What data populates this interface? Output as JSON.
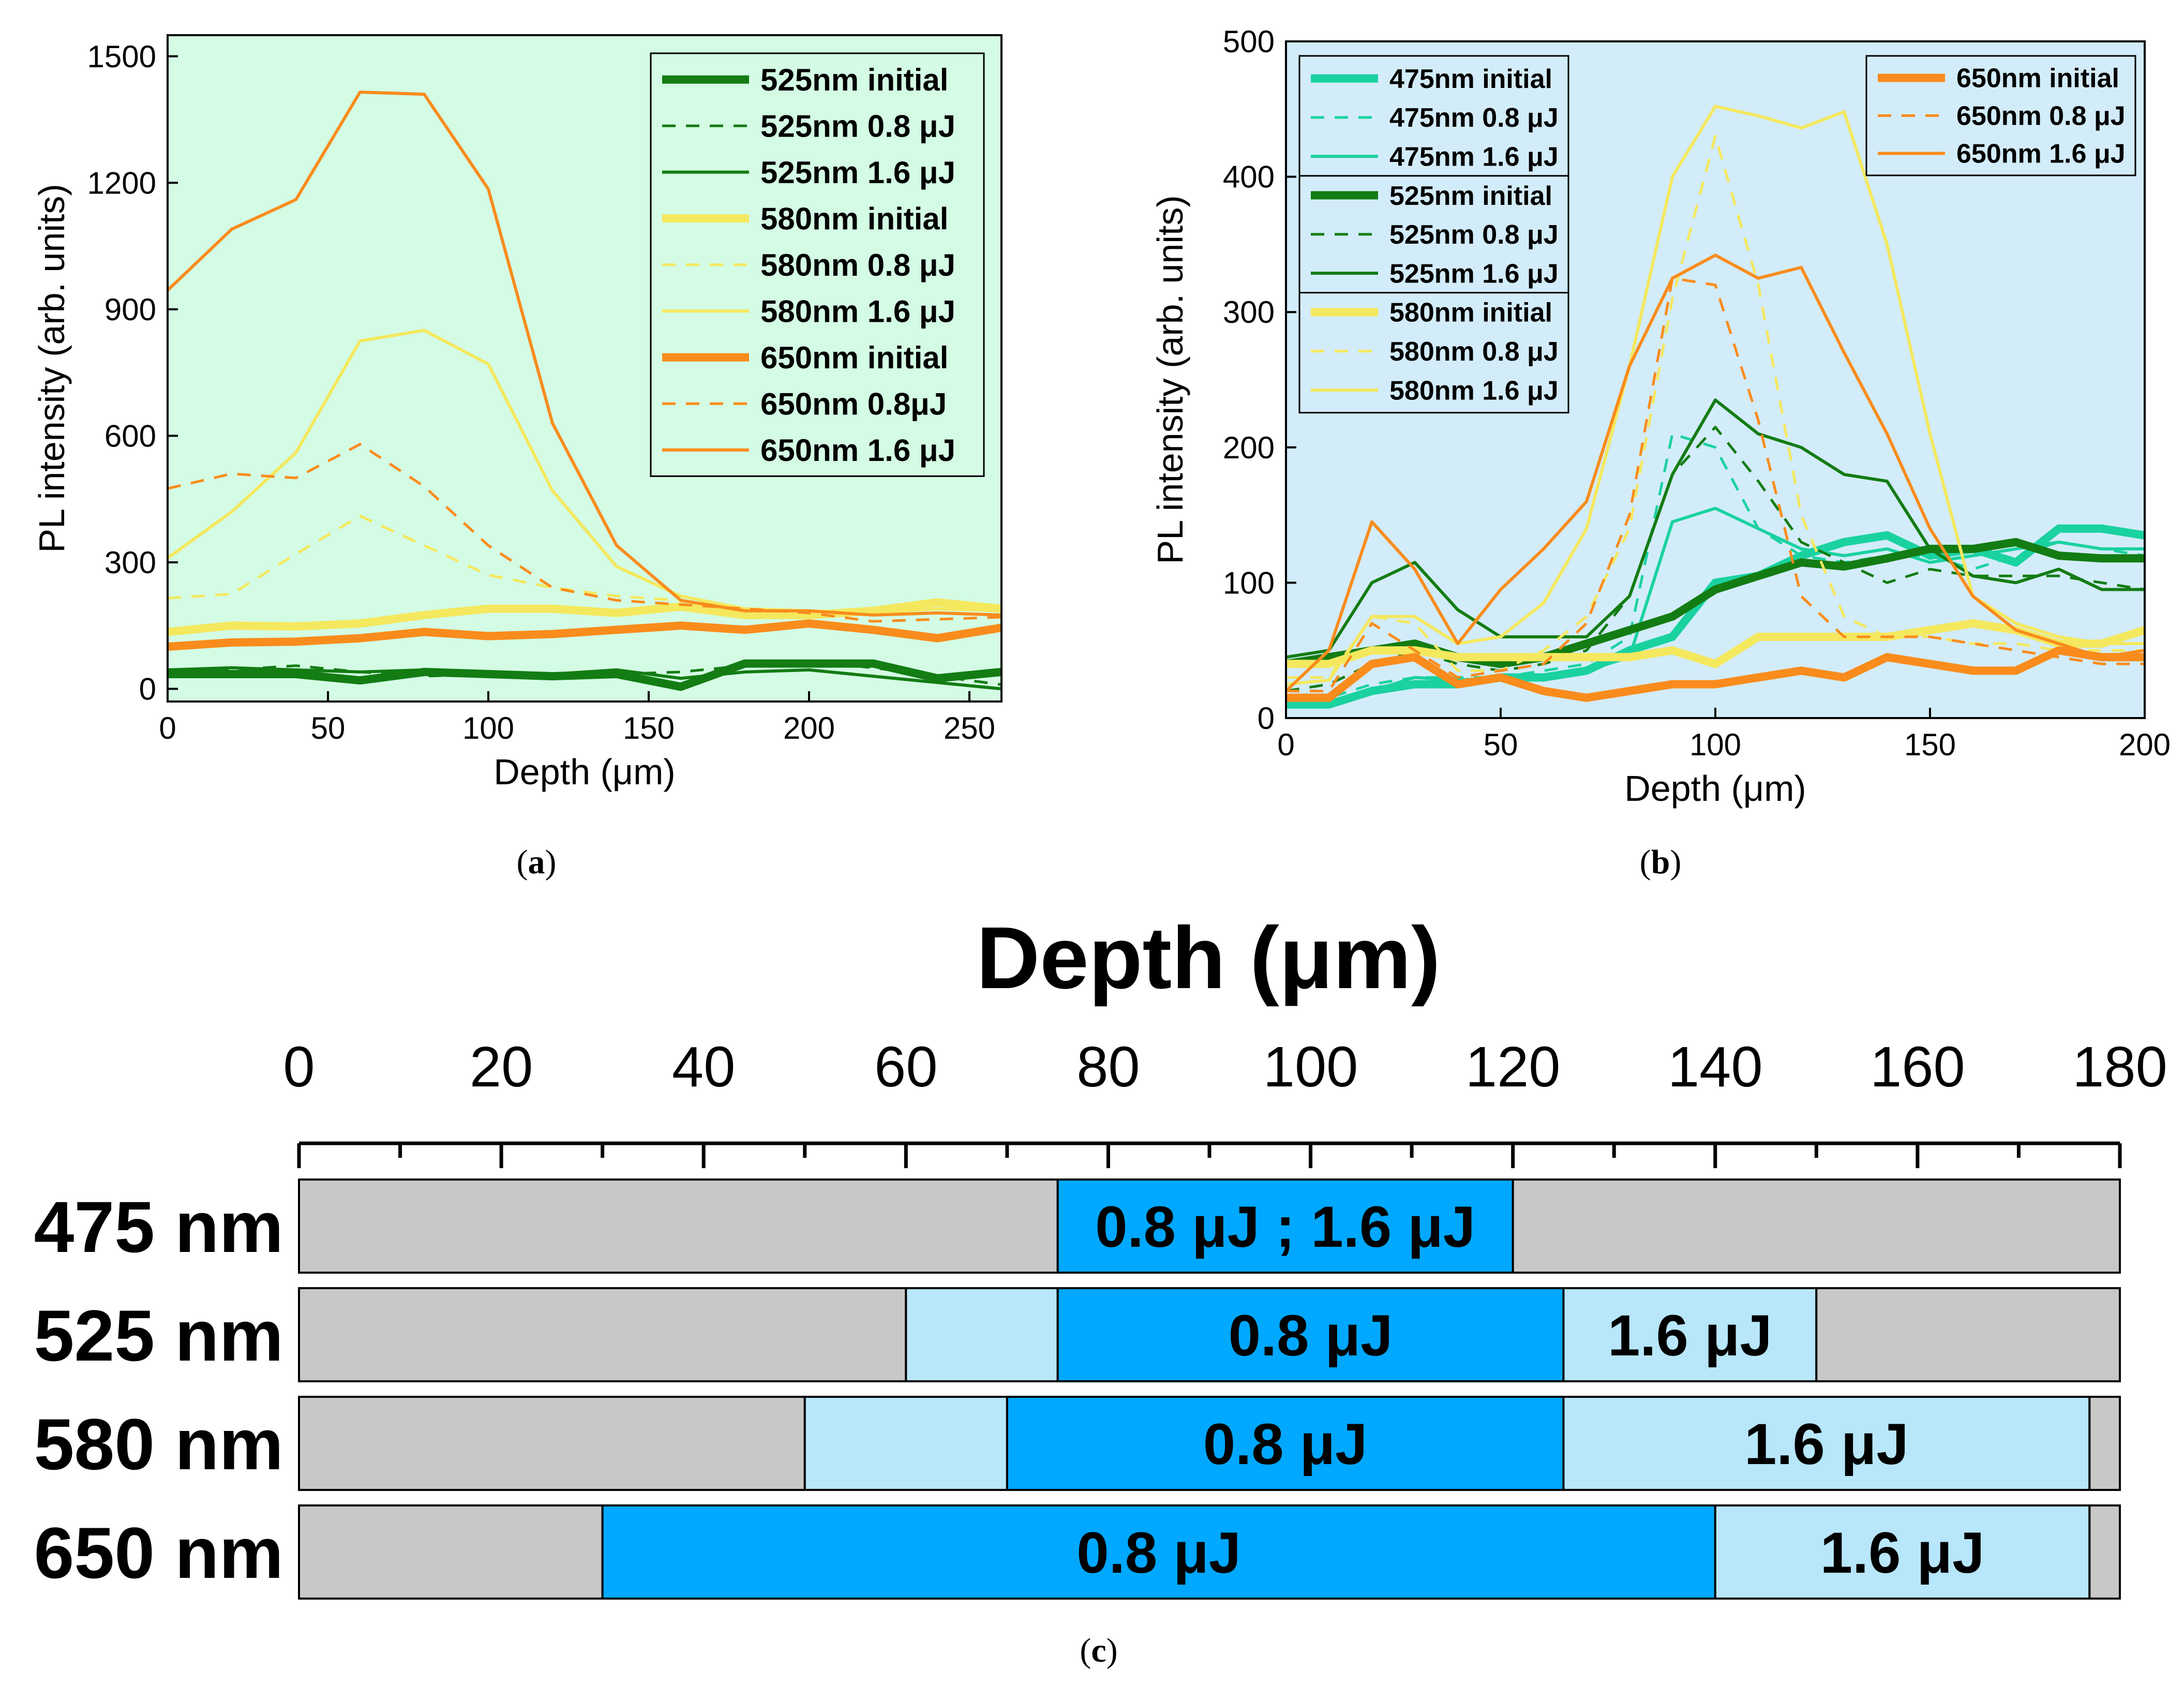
{
  "colors": {
    "panel_a_bg": "#d4fbe4",
    "panel_b_bg": "#d3ecfa",
    "c475": "#1ad2a0",
    "c525": "#137c13",
    "c580": "#f4e85e",
    "c650": "#f98c1c",
    "gray": "#c8c8c8",
    "light_blue": "#b8e6fb",
    "blue": "#00a8ff"
  },
  "captions": {
    "a": "a",
    "b": "b",
    "c": "c"
  },
  "chart_data": [
    {
      "type": "line",
      "panel": "a",
      "xlabel": "Depth (μm)",
      "ylabel": "PL intensity (arb. units)",
      "xlim": [
        0,
        260
      ],
      "ylim": [
        -30,
        1550
      ],
      "xticks": [
        "0",
        "50",
        "100",
        "150",
        "200",
        "250"
      ],
      "yticks": [
        "0",
        "300",
        "600",
        "900",
        "1200",
        "1500"
      ],
      "legend_position": "top-right",
      "x": [
        0,
        20,
        40,
        60,
        80,
        100,
        120,
        140,
        160,
        180,
        200,
        220,
        240,
        260
      ],
      "series": [
        {
          "name": "525nm initial",
          "color": "c525",
          "style": "thick",
          "values": [
            35,
            35,
            35,
            20,
            40,
            35,
            30,
            35,
            5,
            60,
            60,
            60,
            25,
            40
          ]
        },
        {
          "name": "525nm 0.8 μJ",
          "color": "c525",
          "style": "dashed",
          "values": [
            40,
            45,
            55,
            40,
            30,
            35,
            30,
            35,
            40,
            55,
            65,
            50,
            30,
            10
          ]
        },
        {
          "name": "525nm 1.6 μJ",
          "color": "c525",
          "style": "thin",
          "values": [
            45,
            50,
            45,
            40,
            45,
            40,
            35,
            45,
            25,
            40,
            45,
            30,
            15,
            0
          ]
        },
        {
          "name": "580nm initial",
          "color": "c580",
          "style": "thick",
          "values": [
            135,
            150,
            148,
            155,
            175,
            190,
            190,
            180,
            195,
            175,
            175,
            185,
            205,
            190
          ]
        },
        {
          "name": "580nm 0.8 μJ",
          "color": "c580",
          "style": "dashed",
          "values": [
            215,
            225,
            320,
            410,
            340,
            270,
            240,
            220,
            210,
            190,
            185,
            180,
            200,
            195
          ]
        },
        {
          "name": "580nm 1.6 μJ",
          "color": "c580",
          "style": "thin",
          "values": [
            310,
            420,
            560,
            825,
            850,
            770,
            470,
            290,
            220,
            190,
            185,
            180,
            190,
            185
          ]
        },
        {
          "name": "650nm initial",
          "color": "c650",
          "style": "thick",
          "values": [
            100,
            110,
            112,
            120,
            135,
            125,
            130,
            140,
            150,
            140,
            155,
            140,
            120,
            145
          ]
        },
        {
          "name": "650nm 0.8μJ",
          "color": "c650",
          "style": "dashed",
          "values": [
            475,
            510,
            500,
            580,
            480,
            340,
            240,
            210,
            200,
            190,
            180,
            160,
            165,
            170
          ]
        },
        {
          "name": "650nm 1.6 μJ",
          "color": "c650",
          "style": "thin",
          "values": [
            945,
            1090,
            1160,
            1415,
            1410,
            1185,
            630,
            340,
            210,
            185,
            185,
            175,
            180,
            175
          ]
        }
      ]
    },
    {
      "type": "line",
      "panel": "b",
      "xlabel": "Depth (μm)",
      "ylabel": "PL intensity (arb. units)",
      "xlim": [
        0,
        200
      ],
      "ylim": [
        0,
        500
      ],
      "xticks": [
        "0",
        "50",
        "100",
        "150",
        "200"
      ],
      "yticks": [
        "0",
        "100",
        "200",
        "300",
        "400",
        "500"
      ],
      "legend_position": "top-left and top-right",
      "x": [
        0,
        10,
        20,
        30,
        40,
        50,
        60,
        70,
        80,
        90,
        100,
        110,
        120,
        130,
        140,
        150,
        160,
        170,
        180,
        190,
        200
      ],
      "series": [
        {
          "name": "475nm initial",
          "color": "c475",
          "style": "thick",
          "values": [
            10,
            10,
            20,
            25,
            25,
            30,
            30,
            35,
            50,
            60,
            100,
            105,
            120,
            130,
            135,
            120,
            125,
            115,
            140,
            140,
            135
          ]
        },
        {
          "name": "475nm 0.8 μJ",
          "color": "c475",
          "style": "dashed",
          "values": [
            15,
            15,
            25,
            30,
            30,
            30,
            35,
            40,
            60,
            210,
            200,
            140,
            120,
            115,
            120,
            120,
            110,
            120,
            130,
            125,
            120
          ]
        },
        {
          "name": "475nm 1.6 μJ",
          "color": "c475",
          "style": "thin",
          "values": [
            10,
            12,
            20,
            30,
            28,
            30,
            28,
            35,
            45,
            145,
            155,
            140,
            125,
            120,
            125,
            115,
            120,
            125,
            130,
            125,
            125
          ]
        },
        {
          "name": "525nm initial",
          "color": "c525",
          "style": "thick",
          "values": [
            40,
            45,
            50,
            55,
            45,
            40,
            45,
            55,
            65,
            75,
            95,
            105,
            115,
            112,
            118,
            125,
            125,
            130,
            120,
            118,
            118
          ]
        },
        {
          "name": "525nm 0.8 μJ",
          "color": "c525",
          "style": "dashed",
          "values": [
            20,
            25,
            40,
            50,
            40,
            35,
            40,
            50,
            90,
            180,
            215,
            175,
            130,
            115,
            100,
            110,
            105,
            105,
            105,
            100,
            95
          ]
        },
        {
          "name": "525nm 1.6 μJ",
          "color": "c525",
          "style": "thin",
          "values": [
            45,
            50,
            100,
            115,
            80,
            60,
            60,
            60,
            90,
            180,
            235,
            210,
            200,
            180,
            175,
            125,
            105,
            100,
            110,
            95,
            95
          ]
        },
        {
          "name": "580nm initial",
          "color": "c580",
          "style": "thick",
          "values": [
            40,
            40,
            50,
            50,
            45,
            45,
            45,
            45,
            45,
            50,
            40,
            60,
            60,
            60,
            60,
            65,
            70,
            65,
            55,
            55,
            65
          ]
        },
        {
          "name": "580nm 0.8 μJ",
          "color": "c580",
          "style": "dashed",
          "values": [
            30,
            30,
            75,
            70,
            35,
            35,
            50,
            75,
            140,
            310,
            430,
            320,
            150,
            75,
            60,
            60,
            55,
            55,
            50,
            50,
            50
          ]
        },
        {
          "name": "580nm 1.6 μJ",
          "color": "c580",
          "style": "thin",
          "values": [
            25,
            28,
            75,
            75,
            55,
            60,
            85,
            140,
            260,
            400,
            452,
            445,
            436,
            448,
            350,
            210,
            90,
            70,
            60,
            55,
            55
          ]
        },
        {
          "name": "650nm initial",
          "color": "c650",
          "style": "thick",
          "values": [
            15,
            15,
            40,
            45,
            25,
            30,
            20,
            15,
            20,
            25,
            25,
            30,
            35,
            30,
            45,
            40,
            35,
            35,
            50,
            45,
            45
          ]
        },
        {
          "name": "650nm 0.8 μJ",
          "color": "c650",
          "style": "dashed",
          "values": [
            20,
            20,
            70,
            50,
            30,
            35,
            40,
            70,
            150,
            325,
            320,
            220,
            90,
            60,
            60,
            60,
            55,
            50,
            45,
            40,
            40
          ]
        },
        {
          "name": "650nm 1.6 μJ",
          "color": "c650",
          "style": "thin",
          "values": [
            20,
            50,
            145,
            110,
            55,
            95,
            125,
            160,
            260,
            325,
            342,
            325,
            333,
            270,
            210,
            140,
            90,
            65,
            55,
            45,
            50
          ]
        }
      ]
    },
    {
      "type": "bar",
      "panel": "c",
      "title": "Depth (μm)",
      "xlim": [
        0,
        180
      ],
      "xticks": [
        "0",
        "20",
        "40",
        "60",
        "80",
        "100",
        "120",
        "140",
        "160",
        "180"
      ],
      "rows": [
        {
          "label": "475 nm",
          "segments": [
            {
              "from": 0,
              "to": 75,
              "fill": "gray",
              "text": ""
            },
            {
              "from": 75,
              "to": 120,
              "fill": "blue",
              "text": "0.8 μJ ; 1.6 μJ"
            },
            {
              "from": 120,
              "to": 180,
              "fill": "gray",
              "text": ""
            }
          ]
        },
        {
          "label": "525 nm",
          "segments": [
            {
              "from": 0,
              "to": 60,
              "fill": "gray",
              "text": ""
            },
            {
              "from": 60,
              "to": 75,
              "fill": "light_blue",
              "text": ""
            },
            {
              "from": 75,
              "to": 125,
              "fill": "blue",
              "text": "0.8 μJ"
            },
            {
              "from": 125,
              "to": 150,
              "fill": "light_blue",
              "text": "1.6 μJ"
            },
            {
              "from": 150,
              "to": 180,
              "fill": "gray",
              "text": ""
            }
          ]
        },
        {
          "label": "580 nm",
          "segments": [
            {
              "from": 0,
              "to": 50,
              "fill": "gray",
              "text": ""
            },
            {
              "from": 50,
              "to": 70,
              "fill": "light_blue",
              "text": ""
            },
            {
              "from": 70,
              "to": 125,
              "fill": "blue",
              "text": "0.8 μJ"
            },
            {
              "from": 125,
              "to": 177,
              "fill": "light_blue",
              "text": "1.6 μJ"
            },
            {
              "from": 177,
              "to": 180,
              "fill": "gray",
              "text": ""
            }
          ]
        },
        {
          "label": "650 nm",
          "segments": [
            {
              "from": 0,
              "to": 30,
              "fill": "gray",
              "text": ""
            },
            {
              "from": 30,
              "to": 140,
              "fill": "blue",
              "text": "0.8 μJ"
            },
            {
              "from": 140,
              "to": 177,
              "fill": "light_blue",
              "text": "1.6 μJ"
            },
            {
              "from": 177,
              "to": 180,
              "fill": "gray",
              "text": ""
            }
          ]
        }
      ]
    }
  ]
}
